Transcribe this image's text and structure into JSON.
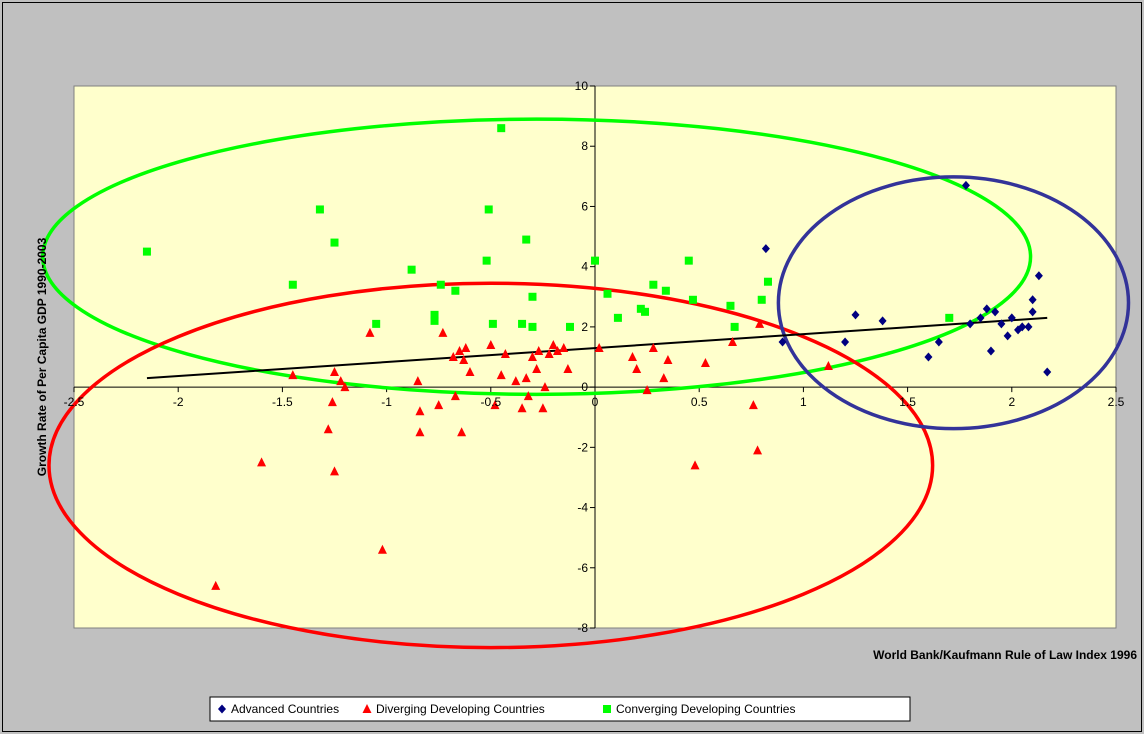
{
  "chart_data": {
    "type": "scatter",
    "title": "",
    "xlabel": "World Bank/Kaufmann Rule of Law Index 1996",
    "ylabel": "Growth Rate of Per Capita GDP 1990-2003",
    "xlim": [
      -2.5,
      2.5
    ],
    "ylim": [
      -8,
      10
    ],
    "x_ticks": [
      -2.5,
      -2,
      -1.5,
      -1,
      -0.5,
      0,
      0.5,
      1,
      1.5,
      2,
      2.5
    ],
    "x_tick_labels": [
      "-2.5",
      "-2",
      "-1.5",
      "-1",
      "-0.5",
      "0",
      "0.5",
      "1",
      "1.5",
      "2",
      "2.5"
    ],
    "y_ticks": [
      -8,
      -6,
      -4,
      -2,
      0,
      2,
      4,
      6,
      8,
      10
    ],
    "y_tick_labels": [
      "-8",
      "-6",
      "-4",
      "-2",
      "0",
      "2",
      "4",
      "6",
      "8",
      "10"
    ],
    "grid": false,
    "legend_position": "bottom",
    "plot_background": "#ffffcc",
    "page_background": "#c0c0c0",
    "series": [
      {
        "name": "Advanced Countries",
        "marker": "diamond",
        "color": "#000080",
        "points": [
          [
            0.82,
            4.6
          ],
          [
            0.9,
            1.5
          ],
          [
            1.2,
            1.5
          ],
          [
            1.25,
            2.4
          ],
          [
            1.38,
            2.2
          ],
          [
            1.6,
            1.0
          ],
          [
            1.65,
            1.5
          ],
          [
            1.78,
            6.7
          ],
          [
            1.8,
            2.1
          ],
          [
            1.85,
            2.3
          ],
          [
            1.88,
            2.6
          ],
          [
            1.9,
            1.2
          ],
          [
            1.92,
            2.5
          ],
          [
            1.95,
            2.1
          ],
          [
            1.98,
            1.7
          ],
          [
            2.0,
            2.3
          ],
          [
            2.03,
            1.9
          ],
          [
            2.05,
            2.0
          ],
          [
            2.08,
            2.0
          ],
          [
            2.1,
            2.5
          ],
          [
            2.1,
            2.9
          ],
          [
            2.13,
            3.7
          ],
          [
            2.17,
            0.5
          ]
        ]
      },
      {
        "name": "Diverging Developing Countries",
        "marker": "triangle",
        "color": "#ff0000",
        "points": [
          [
            -1.82,
            -6.6
          ],
          [
            -1.6,
            -2.5
          ],
          [
            -1.45,
            0.4
          ],
          [
            -1.28,
            -1.4
          ],
          [
            -1.26,
            -0.5
          ],
          [
            -1.25,
            0.5
          ],
          [
            -1.25,
            -2.8
          ],
          [
            -1.22,
            0.2
          ],
          [
            -1.2,
            0.0
          ],
          [
            -1.08,
            1.8
          ],
          [
            -1.02,
            -5.4
          ],
          [
            -0.85,
            0.2
          ],
          [
            -0.84,
            -0.8
          ],
          [
            -0.84,
            -1.5
          ],
          [
            -0.75,
            -0.6
          ],
          [
            -0.73,
            1.8
          ],
          [
            -0.68,
            1.0
          ],
          [
            -0.67,
            -0.3
          ],
          [
            -0.65,
            1.2
          ],
          [
            -0.64,
            -1.5
          ],
          [
            -0.63,
            0.9
          ],
          [
            -0.62,
            1.3
          ],
          [
            -0.6,
            0.5
          ],
          [
            -0.5,
            1.4
          ],
          [
            -0.48,
            -0.6
          ],
          [
            -0.45,
            0.4
          ],
          [
            -0.43,
            1.1
          ],
          [
            -0.38,
            0.2
          ],
          [
            -0.35,
            -0.7
          ],
          [
            -0.33,
            0.3
          ],
          [
            -0.32,
            -0.3
          ],
          [
            -0.3,
            1.0
          ],
          [
            -0.28,
            0.6
          ],
          [
            -0.27,
            1.2
          ],
          [
            -0.25,
            -0.7
          ],
          [
            -0.24,
            0.0
          ],
          [
            -0.22,
            1.1
          ],
          [
            -0.2,
            1.4
          ],
          [
            -0.18,
            1.2
          ],
          [
            -0.15,
            1.3
          ],
          [
            -0.13,
            0.6
          ],
          [
            0.02,
            1.3
          ],
          [
            0.18,
            1.0
          ],
          [
            0.2,
            0.6
          ],
          [
            0.25,
            -0.1
          ],
          [
            0.28,
            1.3
          ],
          [
            0.33,
            0.3
          ],
          [
            0.35,
            0.9
          ],
          [
            0.48,
            -2.6
          ],
          [
            0.53,
            0.8
          ],
          [
            0.66,
            1.5
          ],
          [
            0.76,
            -0.6
          ],
          [
            0.78,
            -2.1
          ],
          [
            0.79,
            2.1
          ],
          [
            1.12,
            0.7
          ]
        ]
      },
      {
        "name": "Converging Developing Countries",
        "marker": "square",
        "color": "#00ff00",
        "points": [
          [
            -2.15,
            4.5
          ],
          [
            -1.45,
            3.4
          ],
          [
            -1.32,
            5.9
          ],
          [
            -1.25,
            4.8
          ],
          [
            -1.05,
            2.1
          ],
          [
            -0.88,
            3.9
          ],
          [
            -0.77,
            2.4
          ],
          [
            -0.77,
            2.2
          ],
          [
            -0.74,
            3.4
          ],
          [
            -0.67,
            3.2
          ],
          [
            -0.52,
            4.2
          ],
          [
            -0.51,
            5.9
          ],
          [
            -0.49,
            2.1
          ],
          [
            -0.45,
            8.6
          ],
          [
            -0.35,
            2.1
          ],
          [
            -0.33,
            4.9
          ],
          [
            -0.3,
            3.0
          ],
          [
            -0.3,
            2.0
          ],
          [
            -0.12,
            2.0
          ],
          [
            0.0,
            4.2
          ],
          [
            0.06,
            3.1
          ],
          [
            0.11,
            2.3
          ],
          [
            0.22,
            2.6
          ],
          [
            0.24,
            2.5
          ],
          [
            0.28,
            3.4
          ],
          [
            0.34,
            3.2
          ],
          [
            0.45,
            4.2
          ],
          [
            0.47,
            2.9
          ],
          [
            0.65,
            2.7
          ],
          [
            0.67,
            2.0
          ],
          [
            0.8,
            2.9
          ],
          [
            0.83,
            3.5
          ],
          [
            1.7,
            2.3
          ]
        ]
      }
    ],
    "trendline": {
      "color": "#000000",
      "x": [
        -2.15,
        2.17
      ],
      "y": [
        0.3,
        2.3
      ]
    },
    "ellipses": [
      {
        "color": "#00ff00",
        "cx": -0.28,
        "cy": 4.33,
        "rx": 2.37,
        "ry": 4.57
      },
      {
        "color": "#ff0000",
        "cx": -0.5,
        "cy": -2.6,
        "rx": 2.12,
        "ry": 6.05
      },
      {
        "color": "#333399",
        "cx": 1.72,
        "cy": 2.8,
        "rx": 0.84,
        "ry": 4.18
      }
    ]
  }
}
